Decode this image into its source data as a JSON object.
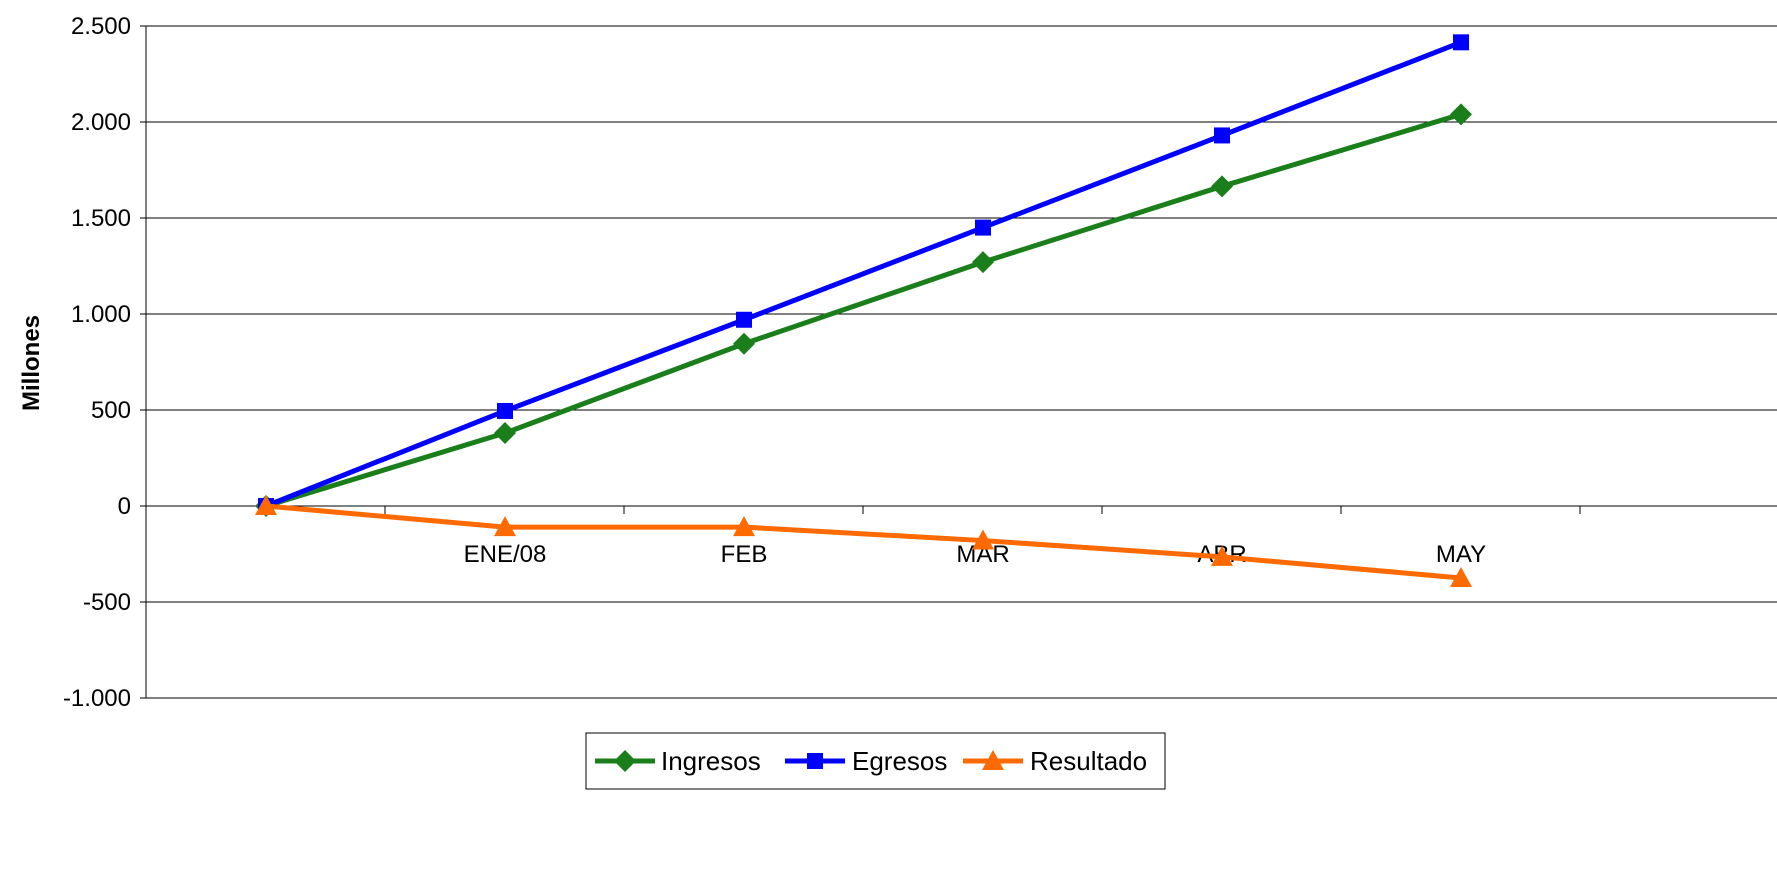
{
  "chart_data": {
    "type": "line",
    "title": "",
    "xlabel": "",
    "ylabel": "Millones",
    "ylim": [
      -1000,
      2500
    ],
    "y_ticks": [
      2500,
      2000,
      1500,
      1000,
      500,
      0,
      -500,
      -1000
    ],
    "y_tick_labels": [
      "2.500",
      "2.000",
      "1.500",
      "1.000",
      "500",
      "0",
      "-500",
      "-1.000"
    ],
    "categories": [
      "",
      "ENE/08",
      "FEB",
      "MAR",
      "ABR",
      "MAY"
    ],
    "grid": "horizontal",
    "legend_position": "bottom",
    "series": [
      {
        "name": "Ingresos",
        "color": "#1a7f1a",
        "marker": "diamond",
        "values": [
          0,
          380,
          845,
          1270,
          1665,
          2040
        ]
      },
      {
        "name": "Egresos",
        "color": "#0000ff",
        "marker": "square",
        "values": [
          0,
          495,
          970,
          1450,
          1930,
          2415
        ]
      },
      {
        "name": "Resultado",
        "color": "#ff6a00",
        "marker": "triangle",
        "values": [
          0,
          -110,
          -110,
          -180,
          -265,
          -375
        ]
      }
    ]
  }
}
